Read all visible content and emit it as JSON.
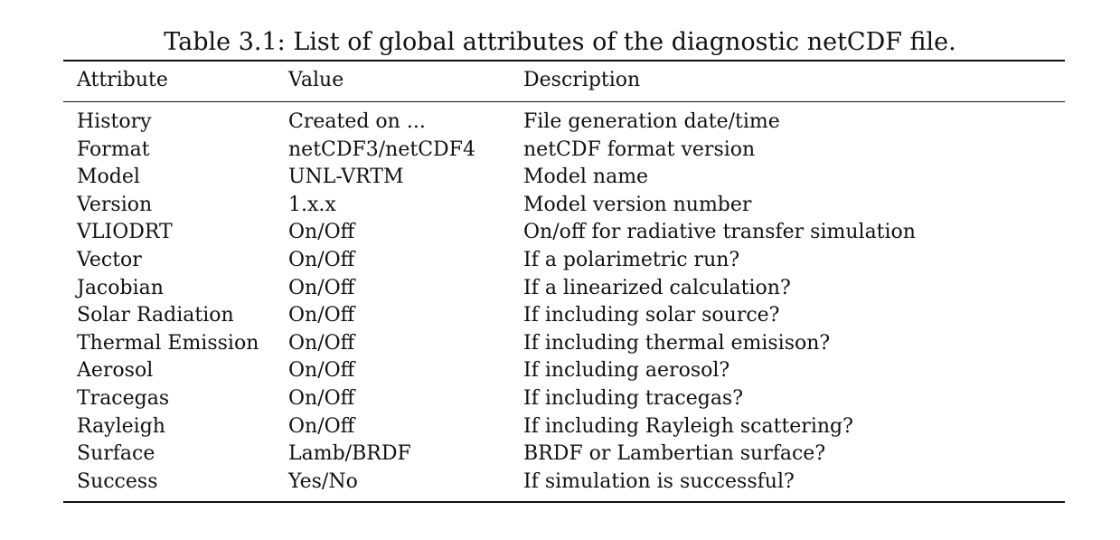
{
  "caption": "Table 3.1: List of global attributes of the diagnostic netCDF file.",
  "columns": [
    "Attribute",
    "Value",
    "Description"
  ],
  "rows": [
    [
      "History",
      "Created on ...",
      "File generation date/time"
    ],
    [
      "Format",
      "netCDF3/netCDF4",
      "netCDF format version"
    ],
    [
      "Model",
      "UNL-VRTM",
      "Model name"
    ],
    [
      "Version",
      "1.x.x",
      "Model version number"
    ],
    [
      "VLIODRT",
      "On/Off",
      "On/off for radiative transfer simulation"
    ],
    [
      "Vector",
      "On/Off",
      "If a polarimetric run?"
    ],
    [
      "Jacobian",
      "On/Off",
      "If a linearized calculation?"
    ],
    [
      "Solar Radiation",
      "On/Off",
      "If including solar source?"
    ],
    [
      "Thermal Emission",
      "On/Off",
      "If including thermal emisison?"
    ],
    [
      "Aerosol",
      "On/Off",
      "If including aerosol?"
    ],
    [
      "Tracegas",
      "On/Off",
      "If including tracegas?"
    ],
    [
      "Rayleigh",
      "On/Off",
      "If including Rayleigh scattering?"
    ],
    [
      "Surface",
      "Lamb/BRDF",
      "BRDF or Lambertian surface?"
    ],
    [
      "Success",
      "Yes/No",
      "If simulation is successful?"
    ]
  ]
}
